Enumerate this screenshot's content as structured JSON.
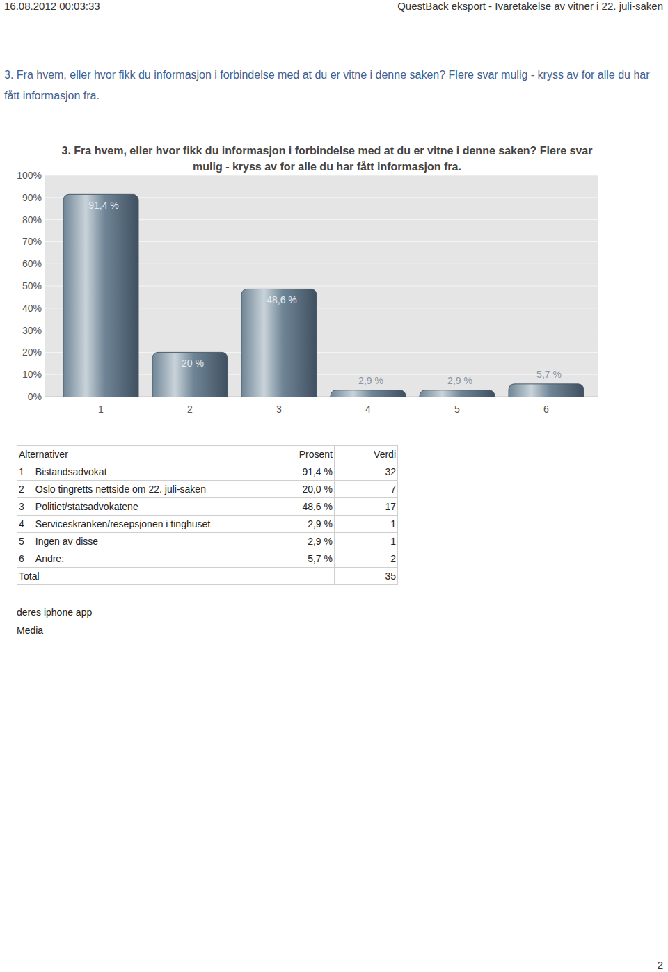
{
  "header": {
    "timestamp": "16.08.2012 00:03:33",
    "title": "QuestBack eksport - Ivaretakelse av vitner i 22. juli-saken"
  },
  "question": "3. Fra hvem, eller hvor fikk du informasjon i forbindelse med at du er vitne i denne saken? Flere svar mulig - kryss av for alle du har fått informasjon fra.",
  "chart_data": {
    "type": "bar",
    "title": "3. Fra hvem, eller hvor fikk du informasjon i forbindelse med at du er vitne i denne saken? Flere svar mulig - kryss av for alle du har fått informasjon fra.",
    "categories": [
      "1",
      "2",
      "3",
      "4",
      "5",
      "6"
    ],
    "values": [
      91.4,
      20,
      48.6,
      2.9,
      2.9,
      5.7
    ],
    "value_labels": [
      "91,4 %",
      "20 %",
      "48,6 %",
      "2,9 %",
      "2,9 %",
      "5,7 %"
    ],
    "data_labels": true,
    "color": "#6f8596",
    "ylim": [
      0,
      100
    ],
    "yticks": [
      {
        "value": 0,
        "label": "0%"
      },
      {
        "value": 10,
        "label": "10%"
      },
      {
        "value": 20,
        "label": "20%"
      },
      {
        "value": 30,
        "label": "30%"
      },
      {
        "value": 40,
        "label": "40%"
      },
      {
        "value": 50,
        "label": "50%"
      },
      {
        "value": 60,
        "label": "60%"
      },
      {
        "value": 70,
        "label": "70%"
      },
      {
        "value": 80,
        "label": "80%"
      },
      {
        "value": 90,
        "label": "90%"
      },
      {
        "value": 100,
        "label": "100%"
      }
    ],
    "grid": true
  },
  "table": {
    "header": [
      "Alternativer",
      "Prosent",
      "Verdi"
    ],
    "rows": [
      {
        "index": 1,
        "label": "Bistandsadvokat",
        "percent": "91,4 %",
        "count": 32
      },
      {
        "index": 2,
        "label": "Oslo tingretts nettside om 22. juli-saken",
        "percent": "20,0 %",
        "count": 7
      },
      {
        "index": 3,
        "label": "Politiet/statsadvokatene",
        "percent": "48,6 %",
        "count": 17
      },
      {
        "index": 4,
        "label": "Serviceskranken/resepsjonen i tinghuset",
        "percent": "2,9 %",
        "count": 1
      },
      {
        "index": 5,
        "label": "Ingen av disse",
        "percent": "2,9 %",
        "count": 1
      },
      {
        "index": 6,
        "label": "Andre:",
        "percent": "5,7 %",
        "count": 2
      }
    ],
    "total": {
      "label": "Total",
      "value": 35
    }
  },
  "other_answers": [
    "deres iphone app",
    "Media"
  ],
  "page_number": 2
}
